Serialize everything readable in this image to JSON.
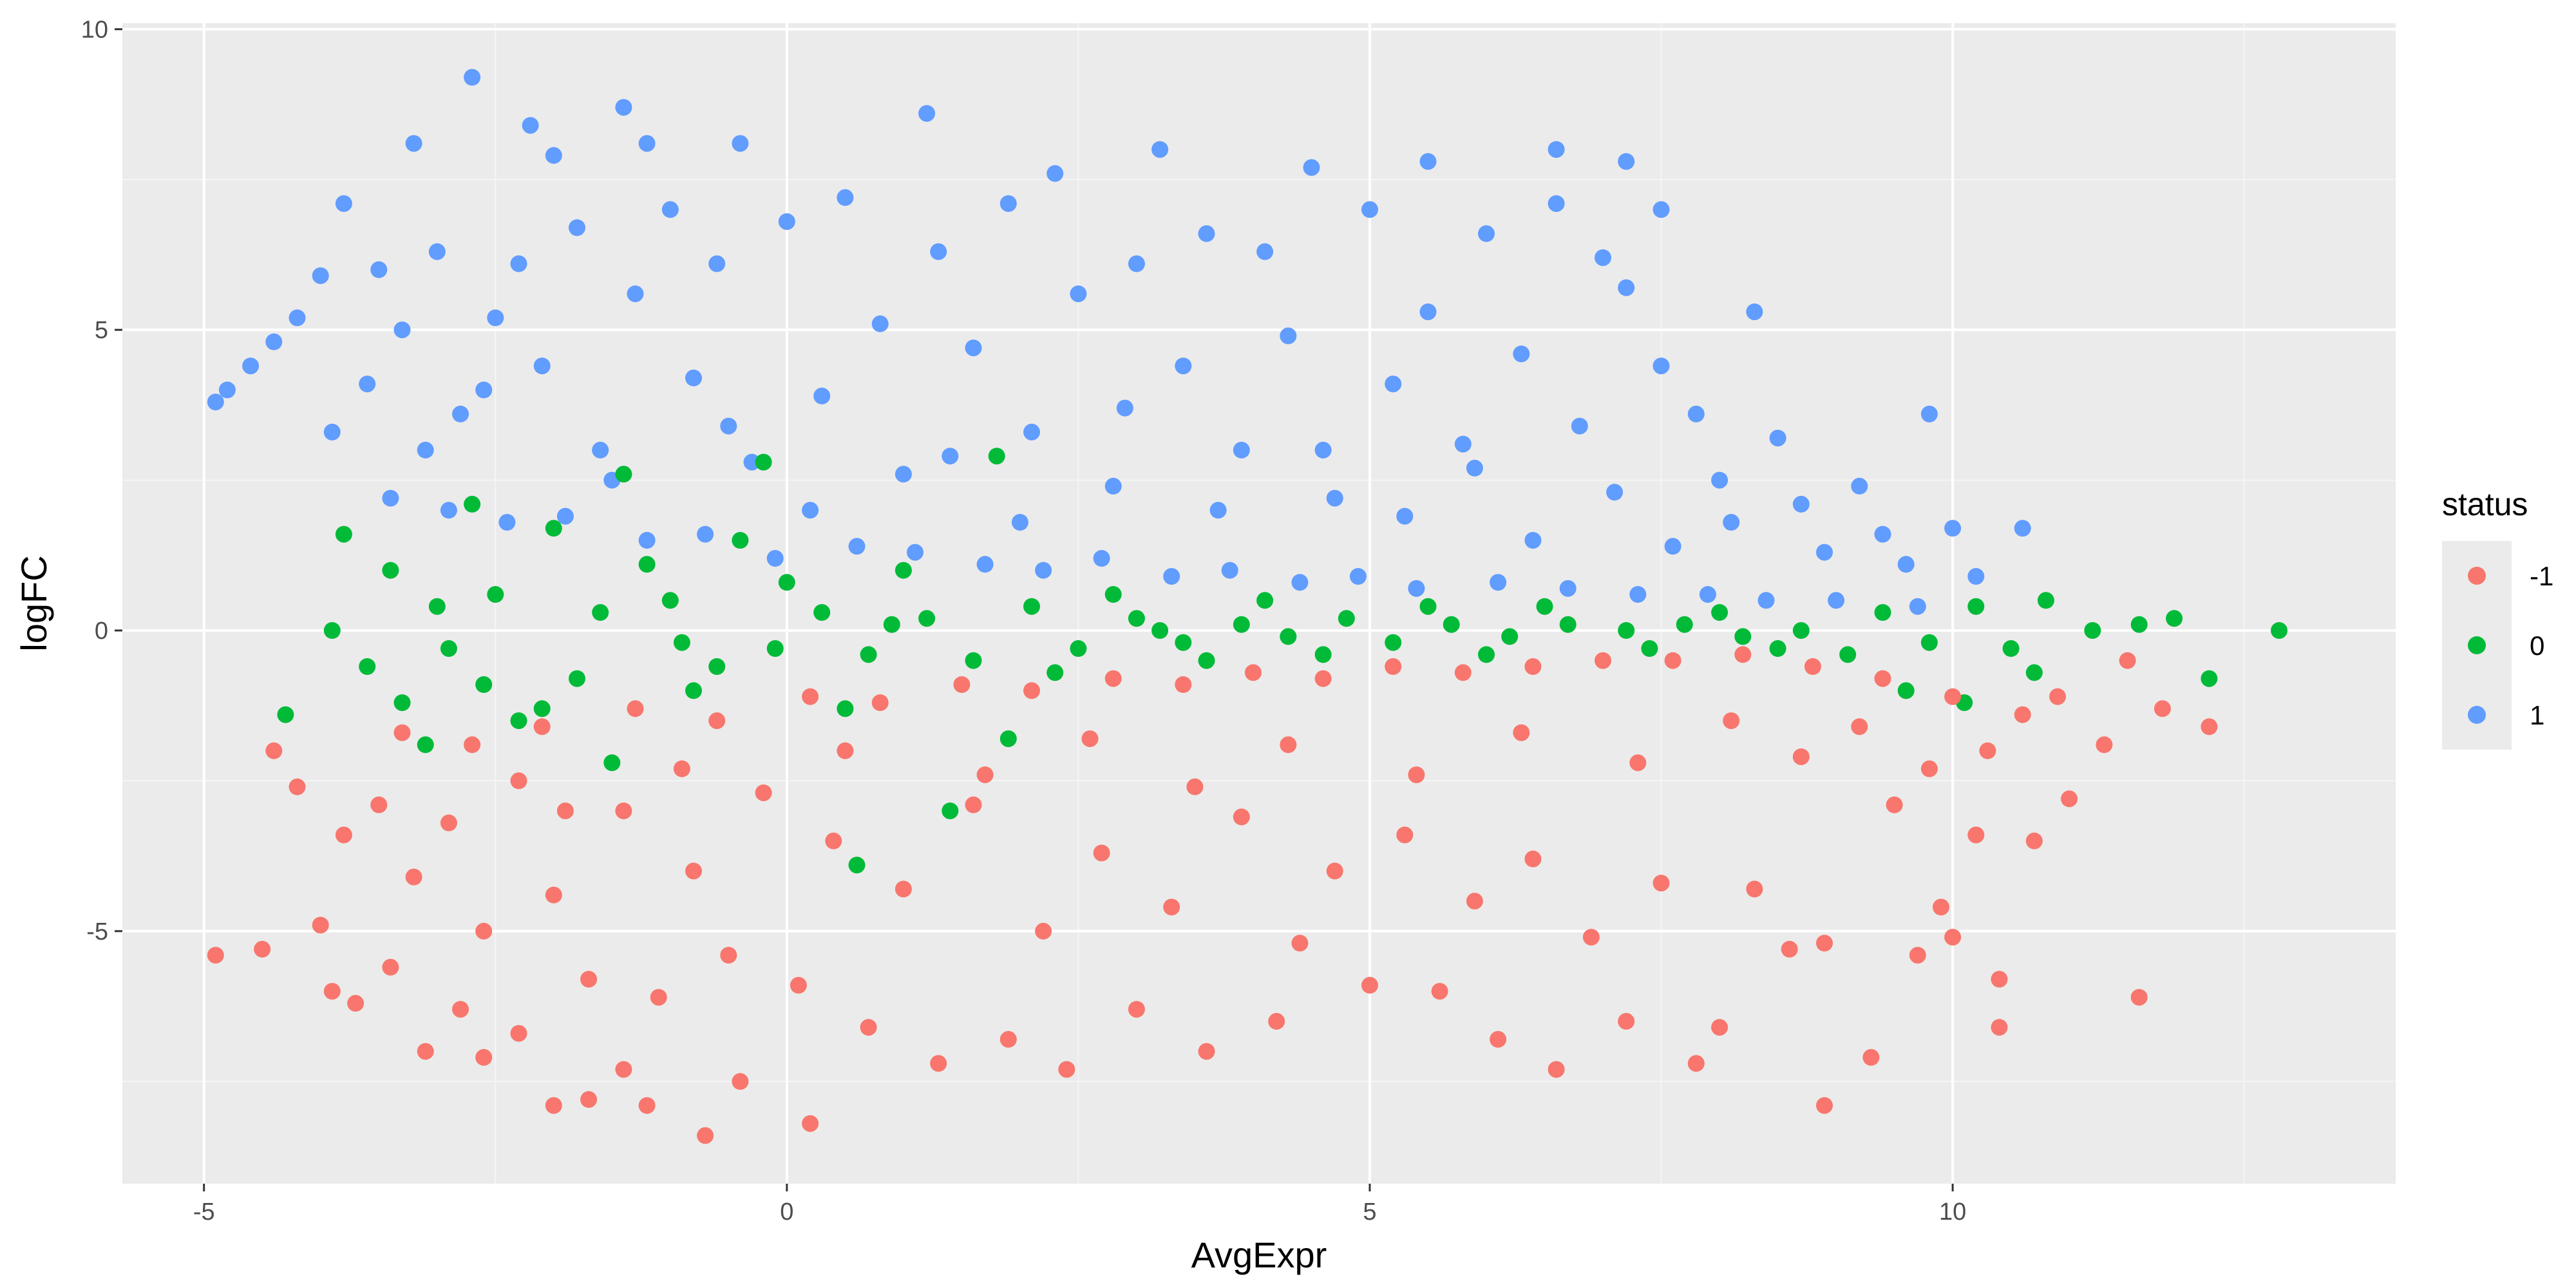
{
  "chart_data": {
    "type": "scatter",
    "title": "",
    "xlabel": "AvgExpr",
    "ylabel": "logFC",
    "xlim": [
      -5.7,
      13.8
    ],
    "ylim": [
      -9.2,
      10.1
    ],
    "x_ticks": [
      -5,
      0,
      5,
      10
    ],
    "x_tick_labels": [
      "-5",
      "0",
      "5",
      "10"
    ],
    "y_ticks": [
      -5,
      0,
      5,
      10
    ],
    "y_tick_labels": [
      "-5",
      "0",
      "5",
      "10"
    ],
    "grid": true,
    "legend": {
      "title": "status",
      "position": "right",
      "entries": [
        "-1",
        "0",
        "1"
      ]
    },
    "colors": {
      "-1": "#F8766D",
      "0": "#00BA38",
      "1": "#619CFF"
    },
    "series": [
      {
        "name": "1",
        "points": [
          [
            -4.9,
            3.8
          ],
          [
            -4.8,
            4.0
          ],
          [
            -4.6,
            4.4
          ],
          [
            -4.4,
            4.8
          ],
          [
            -4.2,
            5.2
          ],
          [
            -4.0,
            5.9
          ],
          [
            -3.8,
            7.1
          ],
          [
            -3.5,
            6.0
          ],
          [
            -3.2,
            8.1
          ],
          [
            -2.7,
            9.2
          ],
          [
            -2.2,
            8.4
          ],
          [
            -2.0,
            7.9
          ],
          [
            -1.4,
            8.7
          ],
          [
            -1.2,
            8.1
          ],
          [
            -0.4,
            8.1
          ],
          [
            1.2,
            8.6
          ],
          [
            -3.9,
            3.3
          ],
          [
            -3.6,
            4.1
          ],
          [
            -3.3,
            5.0
          ],
          [
            -3.0,
            6.3
          ],
          [
            -2.8,
            3.6
          ],
          [
            -2.5,
            5.2
          ],
          [
            -2.3,
            6.1
          ],
          [
            -2.1,
            4.4
          ],
          [
            -1.8,
            6.7
          ],
          [
            -1.6,
            3.0
          ],
          [
            -1.3,
            5.6
          ],
          [
            -1.0,
            7.0
          ],
          [
            -0.8,
            4.2
          ],
          [
            -0.6,
            6.1
          ],
          [
            -0.3,
            2.8
          ],
          [
            0.0,
            6.8
          ],
          [
            0.3,
            3.9
          ],
          [
            0.5,
            7.2
          ],
          [
            0.8,
            5.1
          ],
          [
            1.0,
            2.6
          ],
          [
            1.3,
            6.3
          ],
          [
            1.6,
            4.7
          ],
          [
            1.9,
            7.1
          ],
          [
            2.1,
            3.3
          ],
          [
            2.3,
            7.6
          ],
          [
            2.5,
            5.6
          ],
          [
            2.8,
            2.4
          ],
          [
            3.0,
            6.1
          ],
          [
            3.2,
            8.0
          ],
          [
            3.4,
            4.4
          ],
          [
            3.6,
            6.6
          ],
          [
            3.9,
            3.0
          ],
          [
            4.1,
            6.3
          ],
          [
            4.3,
            4.9
          ],
          [
            4.5,
            7.7
          ],
          [
            4.7,
            2.2
          ],
          [
            5.0,
            7.0
          ],
          [
            5.2,
            4.1
          ],
          [
            5.5,
            5.3
          ],
          [
            5.5,
            7.8
          ],
          [
            5.8,
            3.1
          ],
          [
            6.0,
            6.6
          ],
          [
            6.3,
            4.6
          ],
          [
            6.6,
            8.0
          ],
          [
            6.6,
            7.1
          ],
          [
            6.8,
            3.4
          ],
          [
            7.0,
            6.2
          ],
          [
            7.2,
            7.8
          ],
          [
            7.2,
            5.7
          ],
          [
            7.5,
            7.0
          ],
          [
            7.5,
            4.4
          ],
          [
            7.8,
            3.6
          ],
          [
            8.0,
            2.5
          ],
          [
            8.3,
            5.3
          ],
          [
            8.5,
            3.2
          ],
          [
            8.7,
            2.1
          ],
          [
            8.9,
            1.3
          ],
          [
            9.2,
            2.4
          ],
          [
            9.4,
            1.6
          ],
          [
            9.6,
            1.1
          ],
          [
            9.8,
            3.6
          ],
          [
            10.0,
            1.7
          ],
          [
            10.2,
            0.9
          ],
          [
            10.6,
            1.7
          ],
          [
            -3.4,
            2.2
          ],
          [
            -2.9,
            2.0
          ],
          [
            -2.4,
            1.8
          ],
          [
            -1.9,
            1.9
          ],
          [
            -1.2,
            1.5
          ],
          [
            -0.7,
            1.6
          ],
          [
            -0.1,
            1.2
          ],
          [
            0.6,
            1.4
          ],
          [
            1.1,
            1.3
          ],
          [
            1.7,
            1.1
          ],
          [
            2.2,
            1.0
          ],
          [
            2.7,
            1.2
          ],
          [
            3.3,
            0.9
          ],
          [
            3.8,
            1.0
          ],
          [
            4.4,
            0.8
          ],
          [
            4.9,
            0.9
          ],
          [
            5.4,
            0.7
          ],
          [
            6.1,
            0.8
          ],
          [
            6.7,
            0.7
          ],
          [
            7.3,
            0.6
          ],
          [
            7.9,
            0.6
          ],
          [
            8.4,
            0.5
          ],
          [
            9.0,
            0.5
          ],
          [
            9.7,
            0.4
          ],
          [
            -3.1,
            3.0
          ],
          [
            -2.6,
            4.0
          ],
          [
            -1.5,
            2.5
          ],
          [
            -0.5,
            3.4
          ],
          [
            0.2,
            2.0
          ],
          [
            1.4,
            2.9
          ],
          [
            2.0,
            1.8
          ],
          [
            2.9,
            3.7
          ],
          [
            3.7,
            2.0
          ],
          [
            4.6,
            3.0
          ],
          [
            5.3,
            1.9
          ],
          [
            5.9,
            2.7
          ],
          [
            6.4,
            1.5
          ],
          [
            7.1,
            2.3
          ],
          [
            7.6,
            1.4
          ],
          [
            8.1,
            1.8
          ]
        ]
      },
      {
        "name": "0",
        "points": [
          [
            -3.9,
            0.0
          ],
          [
            -4.3,
            -1.4
          ],
          [
            -3.8,
            1.6
          ],
          [
            -3.4,
            1.0
          ],
          [
            -3.1,
            -1.9
          ],
          [
            -2.7,
            2.1
          ],
          [
            -2.3,
            -1.5
          ],
          [
            -2.0,
            1.7
          ],
          [
            -1.5,
            -2.2
          ],
          [
            -1.4,
            2.6
          ],
          [
            -1.0,
            0.5
          ],
          [
            -0.6,
            -0.6
          ],
          [
            -0.2,
            2.8
          ],
          [
            0.3,
            0.3
          ],
          [
            0.7,
            -0.4
          ],
          [
            1.2,
            0.2
          ],
          [
            1.6,
            -0.5
          ],
          [
            1.8,
            2.9
          ],
          [
            2.1,
            0.4
          ],
          [
            2.5,
            -0.3
          ],
          [
            3.0,
            0.2
          ],
          [
            3.4,
            -0.2
          ],
          [
            3.9,
            0.1
          ],
          [
            4.3,
            -0.1
          ],
          [
            4.8,
            0.2
          ],
          [
            5.2,
            -0.2
          ],
          [
            5.7,
            0.1
          ],
          [
            6.2,
            -0.1
          ],
          [
            6.7,
            0.1
          ],
          [
            7.2,
            0.0
          ],
          [
            7.7,
            0.1
          ],
          [
            8.2,
            -0.1
          ],
          [
            8.7,
            0.0
          ],
          [
            9.1,
            -0.4
          ],
          [
            9.4,
            0.3
          ],
          [
            9.8,
            -0.2
          ],
          [
            10.2,
            0.4
          ],
          [
            10.5,
            -0.3
          ],
          [
            10.8,
            0.5
          ],
          [
            11.2,
            0.0
          ],
          [
            11.6,
            0.1
          ],
          [
            11.9,
            0.2
          ],
          [
            12.2,
            -0.8
          ],
          [
            12.8,
            0.0
          ],
          [
            -2.9,
            -0.3
          ],
          [
            -2.5,
            0.6
          ],
          [
            -1.8,
            -0.8
          ],
          [
            -1.2,
            1.1
          ],
          [
            -0.8,
            -1.0
          ],
          [
            0.0,
            0.8
          ],
          [
            0.5,
            -1.3
          ],
          [
            1.0,
            1.0
          ],
          [
            1.4,
            -3.0
          ],
          [
            0.6,
            -3.9
          ],
          [
            2.3,
            -0.7
          ],
          [
            2.8,
            0.6
          ],
          [
            3.6,
            -0.5
          ],
          [
            4.1,
            0.5
          ],
          [
            4.6,
            -0.4
          ],
          [
            5.5,
            0.4
          ],
          [
            6.0,
            -0.4
          ],
          [
            6.5,
            0.4
          ],
          [
            7.4,
            -0.3
          ],
          [
            8.0,
            0.3
          ],
          [
            8.5,
            -0.3
          ],
          [
            9.6,
            -1.0
          ],
          [
            10.1,
            -1.2
          ],
          [
            10.7,
            -0.7
          ],
          [
            -3.3,
            -1.2
          ],
          [
            -2.1,
            -1.3
          ],
          [
            -0.4,
            1.5
          ],
          [
            1.9,
            -1.8
          ],
          [
            -3.6,
            -0.6
          ],
          [
            -3.0,
            0.4
          ],
          [
            -2.6,
            -0.9
          ],
          [
            -1.6,
            0.3
          ],
          [
            -0.9,
            -0.2
          ],
          [
            -0.1,
            -0.3
          ],
          [
            0.9,
            0.1
          ],
          [
            3.2,
            0.0
          ]
        ]
      },
      {
        "name": "-1",
        "points": [
          [
            -4.9,
            -5.4
          ],
          [
            -4.5,
            -5.3
          ],
          [
            -4.4,
            -2.0
          ],
          [
            -4.2,
            -2.6
          ],
          [
            -4.0,
            -4.9
          ],
          [
            -3.9,
            -6.0
          ],
          [
            -3.7,
            -6.2
          ],
          [
            -3.4,
            -5.6
          ],
          [
            -3.1,
            -7.0
          ],
          [
            -2.8,
            -6.3
          ],
          [
            -2.6,
            -7.1
          ],
          [
            -2.3,
            -6.7
          ],
          [
            -2.0,
            -7.9
          ],
          [
            -1.7,
            -7.8
          ],
          [
            -1.4,
            -7.3
          ],
          [
            -1.2,
            -7.9
          ],
          [
            -0.7,
            -8.4
          ],
          [
            -0.4,
            -7.5
          ],
          [
            0.2,
            -8.2
          ],
          [
            -3.8,
            -3.4
          ],
          [
            -3.5,
            -2.9
          ],
          [
            -3.2,
            -4.1
          ],
          [
            -2.9,
            -3.2
          ],
          [
            -2.6,
            -5.0
          ],
          [
            -2.3,
            -2.5
          ],
          [
            -2.0,
            -4.4
          ],
          [
            -1.7,
            -5.8
          ],
          [
            -1.4,
            -3.0
          ],
          [
            -1.1,
            -6.1
          ],
          [
            -0.8,
            -4.0
          ],
          [
            -0.5,
            -5.4
          ],
          [
            -0.2,
            -2.7
          ],
          [
            0.1,
            -5.9
          ],
          [
            0.4,
            -3.5
          ],
          [
            0.7,
            -6.6
          ],
          [
            1.0,
            -4.3
          ],
          [
            1.3,
            -7.2
          ],
          [
            1.6,
            -2.9
          ],
          [
            1.9,
            -6.8
          ],
          [
            2.2,
            -5.0
          ],
          [
            2.4,
            -7.3
          ],
          [
            2.7,
            -3.7
          ],
          [
            3.0,
            -6.3
          ],
          [
            3.3,
            -4.6
          ],
          [
            3.6,
            -7.0
          ],
          [
            3.9,
            -3.1
          ],
          [
            4.2,
            -6.5
          ],
          [
            4.4,
            -5.2
          ],
          [
            4.7,
            -4.0
          ],
          [
            5.0,
            -5.9
          ],
          [
            5.3,
            -3.4
          ],
          [
            5.6,
            -6.0
          ],
          [
            5.9,
            -4.5
          ],
          [
            6.1,
            -6.8
          ],
          [
            6.4,
            -3.8
          ],
          [
            6.6,
            -7.3
          ],
          [
            6.9,
            -5.1
          ],
          [
            7.2,
            -6.5
          ],
          [
            7.5,
            -4.2
          ],
          [
            7.8,
            -7.2
          ],
          [
            8.0,
            -6.6
          ],
          [
            8.3,
            -4.3
          ],
          [
            8.6,
            -5.3
          ],
          [
            8.9,
            -7.9
          ],
          [
            8.9,
            -5.2
          ],
          [
            9.3,
            -7.1
          ],
          [
            9.5,
            -2.9
          ],
          [
            9.7,
            -5.4
          ],
          [
            9.9,
            -4.6
          ],
          [
            10.0,
            -5.1
          ],
          [
            10.2,
            -3.4
          ],
          [
            10.4,
            -5.8
          ],
          [
            10.4,
            -6.6
          ],
          [
            10.7,
            -3.5
          ],
          [
            11.0,
            -2.8
          ],
          [
            11.3,
            -1.9
          ],
          [
            11.6,
            -6.1
          ],
          [
            11.8,
            -1.3
          ],
          [
            12.2,
            -1.6
          ],
          [
            -3.3,
            -1.7
          ],
          [
            -2.7,
            -1.9
          ],
          [
            -2.1,
            -1.6
          ],
          [
            -1.3,
            -1.3
          ],
          [
            -0.6,
            -1.5
          ],
          [
            0.2,
            -1.1
          ],
          [
            0.8,
            -1.2
          ],
          [
            1.5,
            -0.9
          ],
          [
            2.1,
            -1.0
          ],
          [
            2.8,
            -0.8
          ],
          [
            3.4,
            -0.9
          ],
          [
            4.0,
            -0.7
          ],
          [
            4.6,
            -0.8
          ],
          [
            5.2,
            -0.6
          ],
          [
            5.8,
            -0.7
          ],
          [
            6.4,
            -0.6
          ],
          [
            7.0,
            -0.5
          ],
          [
            7.6,
            -0.5
          ],
          [
            8.2,
            -0.4
          ],
          [
            8.8,
            -0.6
          ],
          [
            9.4,
            -0.8
          ],
          [
            10.0,
            -1.1
          ],
          [
            10.6,
            -1.4
          ],
          [
            -1.9,
            -3.0
          ],
          [
            -0.9,
            -2.3
          ],
          [
            0.5,
            -2.0
          ],
          [
            1.7,
            -2.4
          ],
          [
            2.6,
            -1.8
          ],
          [
            3.5,
            -2.6
          ],
          [
            4.3,
            -1.9
          ],
          [
            5.4,
            -2.4
          ],
          [
            6.3,
            -1.7
          ],
          [
            7.3,
            -2.2
          ],
          [
            8.1,
            -1.5
          ],
          [
            8.7,
            -2.1
          ],
          [
            9.2,
            -1.6
          ],
          [
            9.8,
            -2.3
          ],
          [
            10.3,
            -2.0
          ],
          [
            10.9,
            -1.1
          ],
          [
            11.5,
            -0.5
          ]
        ]
      }
    ]
  }
}
